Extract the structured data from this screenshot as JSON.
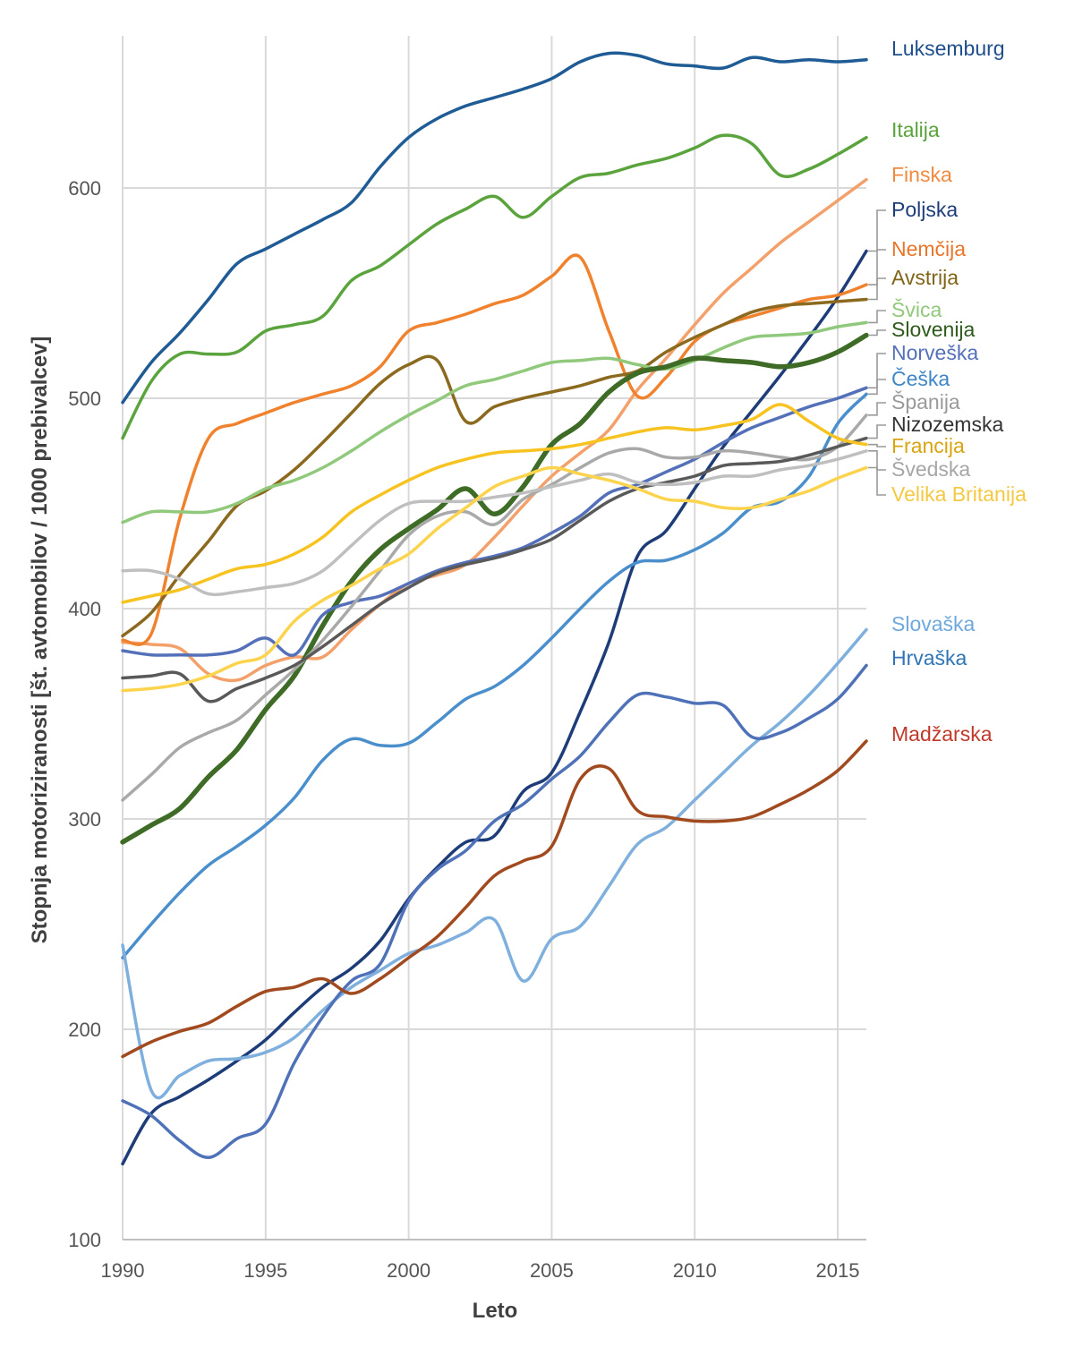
{
  "chart_data": {
    "type": "line",
    "title": "",
    "xlabel": "Leto",
    "ylabel": "Stopnja motoriziranosti [št. avtomobilov / 1000 prebivalcev]",
    "xlim": [
      1990,
      2016
    ],
    "ylim": [
      100,
      680
    ],
    "grid": true,
    "x_ticks": [
      1990,
      1995,
      2000,
      2005,
      2010,
      2015
    ],
    "y_ticks": [
      100,
      200,
      300,
      400,
      500,
      600
    ],
    "legend": "right, inline labels at line ends",
    "x": [
      1990,
      1991,
      1992,
      1993,
      1994,
      1995,
      1996,
      1997,
      1998,
      1999,
      2000,
      2001,
      2002,
      2003,
      2004,
      2005,
      2006,
      2007,
      2008,
      2009,
      2010,
      2011,
      2012,
      2013,
      2014,
      2015,
      2016
    ],
    "series": [
      {
        "name": "Luksemburg",
        "color": "#1f5b94",
        "width": 3.5,
        "values": [
          498,
          517,
          531,
          547,
          564,
          571,
          578,
          585,
          593,
          610,
          624,
          633,
          639,
          643,
          647,
          652,
          660,
          664,
          663,
          659,
          658,
          657,
          662,
          660,
          661,
          660,
          661
        ]
      },
      {
        "name": "Italija",
        "color": "#5aa33d",
        "width": 3.5,
        "values": [
          481,
          508,
          521,
          521,
          522,
          532,
          535,
          539,
          556,
          563,
          573,
          583,
          590,
          596,
          586,
          596,
          605,
          607,
          611,
          614,
          619,
          625,
          621,
          606,
          609,
          616,
          624
        ]
      },
      {
        "name": "Finska",
        "color": "#f4a06a",
        "width": 3.5,
        "values": [
          384,
          383,
          381,
          369,
          366,
          373,
          377,
          377,
          390,
          402,
          412,
          416,
          421,
          434,
          449,
          463,
          474,
          485,
          504,
          519,
          535,
          550,
          562,
          574,
          584,
          594,
          604
        ]
      },
      {
        "name": "Poljska",
        "color": "#1e3d78",
        "width": 3.5,
        "values": [
          136,
          160,
          168,
          176,
          185,
          195,
          208,
          220,
          229,
          242,
          262,
          277,
          289,
          292,
          313,
          322,
          351,
          384,
          425,
          437,
          457,
          477,
          494,
          511,
          529,
          548,
          570
        ]
      },
      {
        "name": "Nemčija",
        "color": "#f0822e",
        "width": 3.5,
        "values": [
          385,
          388,
          443,
          481,
          488,
          493,
          498,
          502,
          506,
          515,
          532,
          536,
          540,
          545,
          549,
          558,
          567,
          532,
          501,
          510,
          527,
          535,
          539,
          543,
          547,
          549,
          554
        ]
      },
      {
        "name": "Avstrija",
        "color": "#8b6a1f",
        "width": 3.5,
        "values": [
          387,
          398,
          416,
          432,
          449,
          456,
          466,
          479,
          493,
          507,
          516,
          518,
          489,
          496,
          500,
          503,
          506,
          510,
          513,
          522,
          529,
          535,
          541,
          544,
          545,
          546,
          547
        ]
      },
      {
        "name": "Švica",
        "color": "#90c97b",
        "width": 3.5,
        "values": [
          441,
          446,
          446,
          446,
          450,
          457,
          461,
          467,
          475,
          484,
          492,
          499,
          506,
          509,
          513,
          517,
          518,
          519,
          516,
          514,
          518,
          524,
          529,
          530,
          531,
          534,
          536
        ]
      },
      {
        "name": "Slovenija",
        "color": "#3e6b26",
        "width": 5.5,
        "values": [
          289,
          297,
          305,
          320,
          333,
          352,
          368,
          392,
          413,
          428,
          438,
          447,
          457,
          445,
          458,
          478,
          488,
          503,
          512,
          515,
          519,
          518,
          517,
          515,
          517,
          522,
          530
        ]
      },
      {
        "name": "Norveška",
        "color": "#5470b8",
        "width": 3.5,
        "values": [
          380,
          378,
          378,
          378,
          380,
          386,
          378,
          397,
          403,
          406,
          412,
          418,
          422,
          425,
          429,
          436,
          444,
          455,
          459,
          465,
          471,
          479,
          486,
          491,
          496,
          500,
          505
        ]
      },
      {
        "name": "Češka",
        "color": "#4a8fcc",
        "width": 3.5,
        "values": [
          234,
          250,
          265,
          278,
          287,
          297,
          310,
          328,
          338,
          335,
          336,
          346,
          357,
          363,
          373,
          386,
          400,
          413,
          422,
          423,
          428,
          436,
          448,
          451,
          463,
          488,
          502
        ]
      },
      {
        "name": "Španija",
        "color": "#a9a9a9",
        "width": 3.5,
        "values": [
          309,
          321,
          334,
          341,
          347,
          359,
          371,
          385,
          401,
          418,
          435,
          444,
          446,
          440,
          452,
          459,
          467,
          474,
          476,
          472,
          472,
          475,
          474,
          472,
          471,
          477,
          492
        ]
      },
      {
        "name": "Nizozemska",
        "color": "#595959",
        "width": 3.5,
        "values": [
          367,
          368,
          369,
          356,
          362,
          367,
          373,
          382,
          392,
          402,
          410,
          417,
          421,
          424,
          428,
          433,
          442,
          451,
          457,
          460,
          463,
          468,
          469,
          470,
          473,
          477,
          481
        ]
      },
      {
        "name": "Francija",
        "color": "#f7c320",
        "width": 3.5,
        "values": [
          403,
          406,
          409,
          414,
          419,
          421,
          426,
          434,
          446,
          454,
          461,
          467,
          471,
          474,
          475,
          476,
          478,
          481,
          484,
          486,
          485,
          487,
          490,
          497,
          489,
          481,
          478
        ]
      },
      {
        "name": "Švedska",
        "color": "#bfbfbf",
        "width": 3.5,
        "values": [
          418,
          418,
          414,
          407,
          408,
          410,
          412,
          418,
          430,
          442,
          450,
          451,
          451,
          453,
          455,
          458,
          461,
          464,
          460,
          459,
          460,
          463,
          463,
          466,
          468,
          471,
          475
        ]
      },
      {
        "name": "Velika Britanija",
        "color": "#fcd34d",
        "width": 3.5,
        "values": [
          361,
          362,
          364,
          368,
          374,
          378,
          394,
          404,
          411,
          419,
          426,
          438,
          448,
          458,
          463,
          467,
          464,
          461,
          457,
          452,
          451,
          448,
          448,
          452,
          456,
          462,
          467
        ]
      },
      {
        "name": "Slovaška",
        "color": "#7fb0dd",
        "width": 3.5,
        "values": [
          240,
          171,
          178,
          185,
          186,
          189,
          196,
          209,
          220,
          228,
          236,
          240,
          246,
          252,
          223,
          243,
          249,
          268,
          288,
          296,
          309,
          322,
          335,
          346,
          359,
          374,
          390
        ]
      },
      {
        "name": "Hrvaška",
        "color": "#4f71b8",
        "width": 3.5,
        "values": [
          166,
          159,
          147,
          139,
          148,
          155,
          184,
          206,
          223,
          231,
          261,
          276,
          285,
          299,
          307,
          319,
          330,
          346,
          359,
          358,
          355,
          354,
          339,
          341,
          348,
          357,
          373
        ]
      },
      {
        "name": "Madžarska",
        "color": "#a24a1f",
        "width": 3.5,
        "values": [
          187,
          194,
          199,
          203,
          211,
          218,
          220,
          224,
          217,
          224,
          234,
          244,
          258,
          273,
          280,
          287,
          319,
          324,
          304,
          301,
          299,
          299,
          301,
          307,
          314,
          323,
          337
        ]
      }
    ]
  },
  "labels": [
    {
      "text": "Luksemburg",
      "color": "#1f4e8c"
    },
    {
      "text": "Italija",
      "color": "#5aa33d"
    },
    {
      "text": "Finska",
      "color": "#f08a3e"
    },
    {
      "text": "Poljska",
      "color": "#1e3d78"
    },
    {
      "text": "Nemčija",
      "color": "#e8762a"
    },
    {
      "text": "Avstrija",
      "color": "#806519"
    },
    {
      "text": "Švica",
      "color": "#90c97b"
    },
    {
      "text": "Slovenija",
      "color": "#2f5a1c"
    },
    {
      "text": "Norveška",
      "color": "#5470b8"
    },
    {
      "text": "Češka",
      "color": "#3f86c6"
    },
    {
      "text": "Španija",
      "color": "#9a9a9a"
    },
    {
      "text": "Nizozemska",
      "color": "#333333"
    },
    {
      "text": "Francija",
      "color": "#d9a40f"
    },
    {
      "text": "Švedska",
      "color": "#a6a6a6"
    },
    {
      "text": "Velika Britanija",
      "color": "#f5c842"
    },
    {
      "text": "Slovaška",
      "color": "#6fa8dc"
    },
    {
      "text": "Hrvaška",
      "color": "#2f75b5"
    },
    {
      "text": "Madžarska",
      "color": "#c0392b"
    }
  ]
}
